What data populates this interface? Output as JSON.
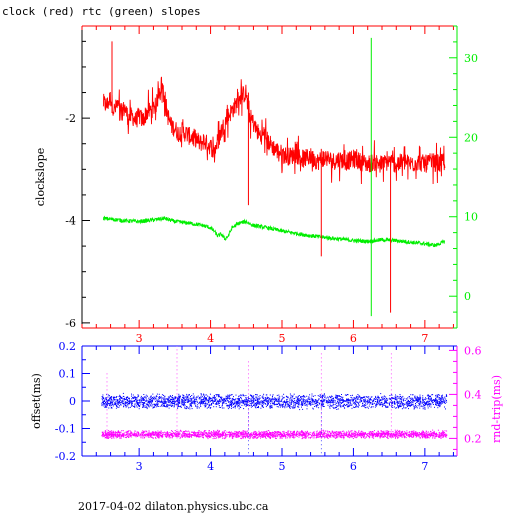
{
  "page": {
    "title": "clock (red) rtc (green) slopes",
    "footer": "2017-04-02 dilaton.physics.ubc.ca"
  },
  "colors": {
    "clock": "#ff0000",
    "rtc": "#00ee00",
    "offset": "#0000ff",
    "rndtrip": "#ff00ff",
    "axis": "#000000"
  },
  "chart_data": [
    {
      "type": "line",
      "name": "top-panel",
      "ylabel_left": "clockslope",
      "xlim": [
        2.2,
        7.45
      ],
      "ylim_left": [
        -6.1,
        -0.2
      ],
      "ylim_right": [
        -4,
        34
      ],
      "x_ticks": [
        3,
        4,
        5,
        6,
        7
      ],
      "y_ticks_left": [
        -6,
        -4,
        -2
      ],
      "y_ticks_right": [
        0,
        10,
        20,
        30
      ],
      "series": [
        {
          "axis": "left",
          "color": "red",
          "points": [
            [
              2.5,
              -1.7
            ],
            [
              2.55,
              -1.75
            ],
            [
              2.6,
              -1.6
            ],
            [
              2.65,
              -1.85
            ],
            [
              2.7,
              -1.75
            ],
            [
              2.75,
              -1.9
            ],
            [
              2.8,
              -1.8
            ],
            [
              2.85,
              -2.0
            ],
            [
              2.9,
              -1.95
            ],
            [
              2.95,
              -2.05
            ],
            [
              3.0,
              -1.95
            ],
            [
              3.05,
              -2.05
            ],
            [
              3.1,
              -1.9
            ],
            [
              3.15,
              -1.85
            ],
            [
              3.2,
              -1.8
            ],
            [
              3.25,
              -1.7
            ],
            [
              3.28,
              -1.45
            ],
            [
              3.3,
              -1.35
            ],
            [
              3.33,
              -1.4
            ],
            [
              3.36,
              -1.6
            ],
            [
              3.4,
              -1.95
            ],
            [
              3.45,
              -2.15
            ],
            [
              3.5,
              -2.2
            ],
            [
              3.55,
              -2.3
            ],
            [
              3.6,
              -2.25
            ],
            [
              3.7,
              -2.35
            ],
            [
              3.8,
              -2.4
            ],
            [
              3.85,
              -2.5
            ],
            [
              3.9,
              -2.45
            ],
            [
              4.0,
              -2.55
            ],
            [
              4.05,
              -2.65
            ],
            [
              4.1,
              -2.45
            ],
            [
              4.15,
              -2.25
            ],
            [
              4.2,
              -2.1
            ],
            [
              4.25,
              -1.95
            ],
            [
              4.3,
              -1.85
            ],
            [
              4.35,
              -1.75
            ],
            [
              4.4,
              -1.6
            ],
            [
              4.45,
              -1.55
            ],
            [
              4.5,
              -1.5
            ],
            [
              4.53,
              -1.9
            ],
            [
              4.56,
              -2.0
            ],
            [
              4.6,
              -2.1
            ],
            [
              4.65,
              -2.25
            ],
            [
              4.7,
              -2.35
            ],
            [
              4.75,
              -2.3
            ],
            [
              4.8,
              -2.45
            ],
            [
              4.9,
              -2.6
            ],
            [
              5.0,
              -2.7
            ],
            [
              5.1,
              -2.75
            ],
            [
              5.2,
              -2.7
            ],
            [
              5.3,
              -2.8
            ],
            [
              5.4,
              -2.75
            ],
            [
              5.5,
              -2.85
            ],
            [
              5.6,
              -2.75
            ],
            [
              5.7,
              -2.85
            ],
            [
              5.8,
              -2.8
            ],
            [
              5.9,
              -2.85
            ],
            [
              6.0,
              -2.8
            ],
            [
              6.1,
              -2.85
            ],
            [
              6.2,
              -2.9
            ],
            [
              6.3,
              -2.85
            ],
            [
              6.4,
              -2.9
            ],
            [
              6.5,
              -2.85
            ],
            [
              6.6,
              -2.9
            ],
            [
              6.7,
              -2.85
            ],
            [
              6.8,
              -2.9
            ],
            [
              6.9,
              -2.85
            ],
            [
              7.0,
              -2.9
            ],
            [
              7.1,
              -2.85
            ],
            [
              7.2,
              -2.9
            ],
            [
              7.28,
              -2.85
            ]
          ]
        },
        {
          "axis": "right",
          "color": "green",
          "points": [
            [
              2.5,
              9.8
            ],
            [
              2.6,
              9.7
            ],
            [
              2.8,
              9.5
            ],
            [
              3.0,
              9.4
            ],
            [
              3.2,
              9.6
            ],
            [
              3.35,
              9.8
            ],
            [
              3.5,
              9.4
            ],
            [
              3.7,
              9.2
            ],
            [
              3.9,
              8.9
            ],
            [
              4.0,
              8.6
            ],
            [
              4.05,
              8.2
            ],
            [
              4.1,
              7.6
            ],
            [
              4.15,
              7.8
            ],
            [
              4.2,
              7.2
            ],
            [
              4.25,
              7.6
            ],
            [
              4.3,
              8.6
            ],
            [
              4.4,
              9.2
            ],
            [
              4.5,
              9.4
            ],
            [
              4.55,
              9.1
            ],
            [
              4.6,
              8.9
            ],
            [
              4.8,
              8.6
            ],
            [
              5.0,
              8.2
            ],
            [
              5.2,
              7.9
            ],
            [
              5.4,
              7.6
            ],
            [
              5.6,
              7.4
            ],
            [
              5.8,
              7.2
            ],
            [
              6.0,
              7.0
            ],
            [
              6.2,
              6.9
            ],
            [
              6.4,
              7.1
            ],
            [
              6.6,
              7.0
            ],
            [
              6.8,
              6.8
            ],
            [
              7.0,
              6.6
            ],
            [
              7.15,
              6.4
            ],
            [
              7.28,
              6.9
            ]
          ]
        }
      ],
      "spikes": [
        {
          "x": 2.62,
          "low": -1.9,
          "high": -0.5,
          "color": "red"
        },
        {
          "x": 4.53,
          "low": -3.7,
          "high": -1.5,
          "color": "red"
        },
        {
          "x": 5.55,
          "low": -4.7,
          "high": -2.6,
          "color": "red"
        },
        {
          "x": 6.52,
          "low": -5.8,
          "high": -2.9,
          "color": "red"
        },
        {
          "x": 6.25,
          "low": -2.5,
          "high": 32.5,
          "color": "green"
        }
      ]
    },
    {
      "type": "scatter",
      "name": "bottom-panel",
      "ylabel_left": "offset(ms)",
      "ylabel_right": "rnd-trip(ms)",
      "xlim": [
        2.2,
        7.45
      ],
      "ylim_left": [
        -0.2,
        0.2
      ],
      "ylim_right": [
        0.12,
        0.62
      ],
      "x_ticks": [
        3,
        4,
        5,
        6,
        7
      ],
      "y_ticks_left": [
        -0.2,
        -0.1,
        0,
        0.1,
        0.2
      ],
      "y_ticks_right": [
        0.2,
        0.4,
        0.6
      ],
      "series": [
        {
          "axis": "left",
          "color": "blue",
          "center": 0.0,
          "halfwidth": 0.03,
          "x_range": [
            2.47,
            7.3
          ]
        },
        {
          "axis": "right",
          "color": "magenta",
          "center": 0.22,
          "halfwidth": 0.02,
          "x_range": [
            2.47,
            7.3
          ]
        }
      ],
      "spikes": [
        {
          "x": 2.55,
          "axis": "right",
          "low": 0.2,
          "high": 0.5,
          "color": "magenta"
        },
        {
          "x": 3.53,
          "axis": "right",
          "low": 0.2,
          "high": 0.62,
          "color": "magenta"
        },
        {
          "x": 4.53,
          "axis": "right",
          "low": 0.2,
          "high": 0.56,
          "color": "magenta"
        },
        {
          "x": 5.55,
          "axis": "right",
          "low": 0.2,
          "high": 0.6,
          "color": "magenta"
        },
        {
          "x": 6.53,
          "axis": "right",
          "low": 0.2,
          "high": 0.6,
          "color": "magenta"
        },
        {
          "x": 4.53,
          "axis": "left",
          "low": -0.19,
          "high": 0.02,
          "color": "blue"
        },
        {
          "x": 5.55,
          "axis": "left",
          "low": -0.19,
          "high": 0.02,
          "color": "blue"
        }
      ]
    }
  ]
}
